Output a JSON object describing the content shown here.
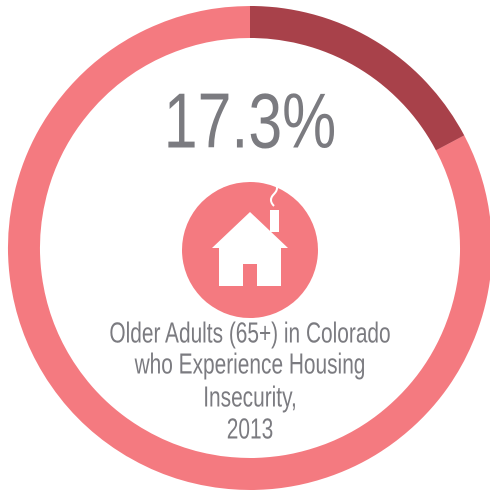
{
  "chart_data": {
    "type": "donut",
    "values": [
      17.3
    ],
    "value_labels": [
      "17.3%"
    ],
    "color": "#a8414a",
    "ring_color": "#f47a80",
    "caption": [
      "Older Adults (65+) in Colorado",
      "who Experience Housing",
      "Insecurity,",
      "2013"
    ]
  }
}
